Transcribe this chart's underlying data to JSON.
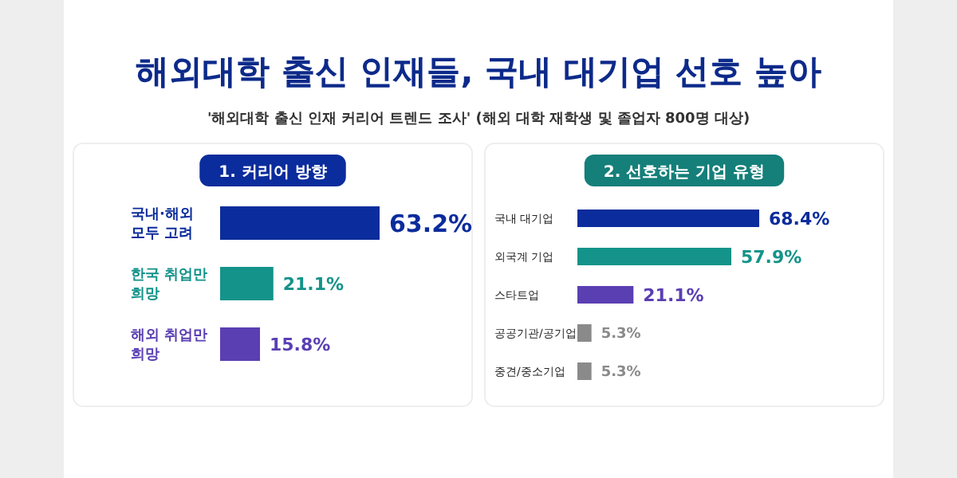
{
  "chart_data": [
    {
      "type": "bar",
      "orientation": "horizontal",
      "title": "1. 커리어 방향",
      "annotations": [
        "해외대학 출신 인재들, 국내 대기업 선호 높아",
        "'해외대학 출신 인재 커리어 트렌드 조사' (해외 대학 재학생 및 졸업자 800명 대상)"
      ],
      "categories": [
        "국내·해외 모두 고려",
        "한국 취업만 희망",
        "해외 취업만 희망"
      ],
      "values": [
        63.2,
        21.1,
        15.8
      ],
      "colors": [
        "#0b2c9c",
        "#14938a",
        "#5a3fb3"
      ],
      "value_labels": [
        "63.2%",
        "21.1%",
        "15.8%"
      ]
    },
    {
      "type": "bar",
      "orientation": "horizontal",
      "title": "2. 선호하는 기업 유형",
      "categories": [
        "국내 대기업",
        "외국계 기업",
        "스타트업",
        "공공기관/공기업",
        "중견/중소기업"
      ],
      "values": [
        68.4,
        57.9,
        21.1,
        5.3,
        5.3
      ],
      "colors": [
        "#0b2c9c",
        "#14938a",
        "#5a3fb3",
        "#8a8a8a",
        "#8a8a8a"
      ],
      "value_labels": [
        "68.4%",
        "57.9%",
        "21.1%",
        "5.3%",
        "5.3%"
      ]
    }
  ]
}
